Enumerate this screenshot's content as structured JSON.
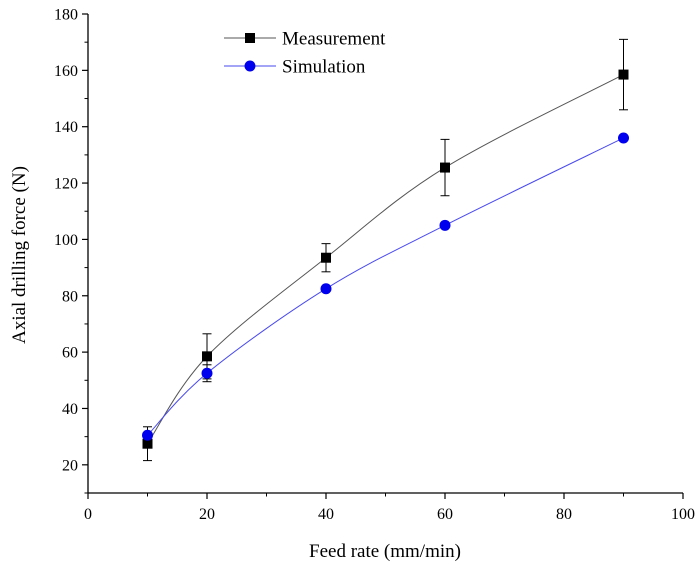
{
  "chart_data": {
    "type": "line",
    "xlabel": "Feed rate (mm/min)",
    "ylabel": "Axial drilling force (N)",
    "xlim": [
      0,
      100
    ],
    "ylim": [
      10,
      180
    ],
    "xticks": [
      0,
      20,
      40,
      60,
      80,
      100
    ],
    "yticks": [
      20,
      40,
      60,
      80,
      100,
      120,
      140,
      160,
      180
    ],
    "grid": false,
    "legend_position": "top-center",
    "series": [
      {
        "name": "Measurement",
        "marker": "square",
        "color": "#000000",
        "line_color": "#555555",
        "x": [
          10,
          20,
          40,
          60,
          90
        ],
        "y": [
          27.5,
          58.5,
          93.5,
          125.5,
          158.5
        ],
        "error": [
          6,
          8,
          5,
          10,
          12.5
        ]
      },
      {
        "name": "Simulation",
        "marker": "circle",
        "color": "#0000ee",
        "line_color": "#4a4aee",
        "x": [
          10,
          20,
          40,
          60,
          90
        ],
        "y": [
          30.5,
          52.5,
          82.5,
          105,
          136
        ],
        "error": [
          0,
          3,
          0,
          0,
          0
        ]
      }
    ]
  }
}
